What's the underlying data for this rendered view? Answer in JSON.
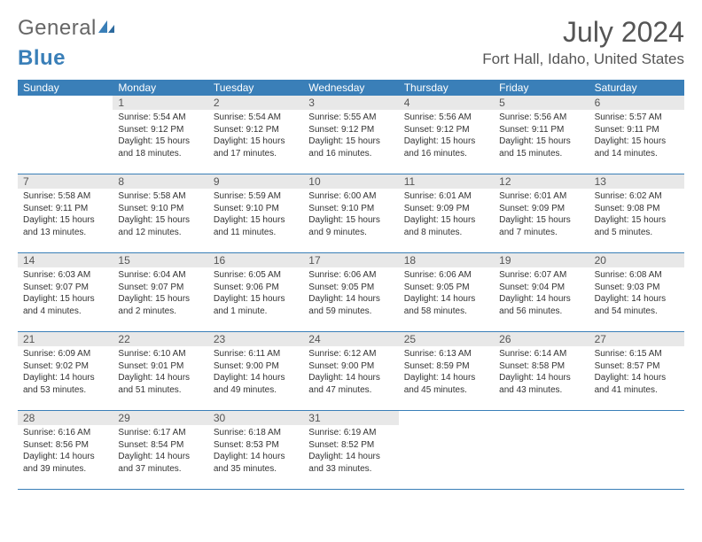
{
  "logo": {
    "general": "General",
    "blue": "Blue"
  },
  "title": "July 2024",
  "location": "Fort Hall, Idaho, United States",
  "colors": {
    "header_bg": "#3a7fb8",
    "daynum_bg": "#e8e8e8",
    "text": "#555555",
    "info_text": "#333333",
    "page_bg": "#ffffff"
  },
  "dayNames": [
    "Sunday",
    "Monday",
    "Tuesday",
    "Wednesday",
    "Thursday",
    "Friday",
    "Saturday"
  ],
  "weeks": [
    [
      {
        "empty": true
      },
      {
        "n": "1",
        "sunrise": "5:54 AM",
        "sunset": "9:12 PM",
        "daylight": "15 hours and 18 minutes."
      },
      {
        "n": "2",
        "sunrise": "5:54 AM",
        "sunset": "9:12 PM",
        "daylight": "15 hours and 17 minutes."
      },
      {
        "n": "3",
        "sunrise": "5:55 AM",
        "sunset": "9:12 PM",
        "daylight": "15 hours and 16 minutes."
      },
      {
        "n": "4",
        "sunrise": "5:56 AM",
        "sunset": "9:12 PM",
        "daylight": "15 hours and 16 minutes."
      },
      {
        "n": "5",
        "sunrise": "5:56 AM",
        "sunset": "9:11 PM",
        "daylight": "15 hours and 15 minutes."
      },
      {
        "n": "6",
        "sunrise": "5:57 AM",
        "sunset": "9:11 PM",
        "daylight": "15 hours and 14 minutes."
      }
    ],
    [
      {
        "n": "7",
        "sunrise": "5:58 AM",
        "sunset": "9:11 PM",
        "daylight": "15 hours and 13 minutes."
      },
      {
        "n": "8",
        "sunrise": "5:58 AM",
        "sunset": "9:10 PM",
        "daylight": "15 hours and 12 minutes."
      },
      {
        "n": "9",
        "sunrise": "5:59 AM",
        "sunset": "9:10 PM",
        "daylight": "15 hours and 11 minutes."
      },
      {
        "n": "10",
        "sunrise": "6:00 AM",
        "sunset": "9:10 PM",
        "daylight": "15 hours and 9 minutes."
      },
      {
        "n": "11",
        "sunrise": "6:01 AM",
        "sunset": "9:09 PM",
        "daylight": "15 hours and 8 minutes."
      },
      {
        "n": "12",
        "sunrise": "6:01 AM",
        "sunset": "9:09 PM",
        "daylight": "15 hours and 7 minutes."
      },
      {
        "n": "13",
        "sunrise": "6:02 AM",
        "sunset": "9:08 PM",
        "daylight": "15 hours and 5 minutes."
      }
    ],
    [
      {
        "n": "14",
        "sunrise": "6:03 AM",
        "sunset": "9:07 PM",
        "daylight": "15 hours and 4 minutes."
      },
      {
        "n": "15",
        "sunrise": "6:04 AM",
        "sunset": "9:07 PM",
        "daylight": "15 hours and 2 minutes."
      },
      {
        "n": "16",
        "sunrise": "6:05 AM",
        "sunset": "9:06 PM",
        "daylight": "15 hours and 1 minute."
      },
      {
        "n": "17",
        "sunrise": "6:06 AM",
        "sunset": "9:05 PM",
        "daylight": "14 hours and 59 minutes."
      },
      {
        "n": "18",
        "sunrise": "6:06 AM",
        "sunset": "9:05 PM",
        "daylight": "14 hours and 58 minutes."
      },
      {
        "n": "19",
        "sunrise": "6:07 AM",
        "sunset": "9:04 PM",
        "daylight": "14 hours and 56 minutes."
      },
      {
        "n": "20",
        "sunrise": "6:08 AM",
        "sunset": "9:03 PM",
        "daylight": "14 hours and 54 minutes."
      }
    ],
    [
      {
        "n": "21",
        "sunrise": "6:09 AM",
        "sunset": "9:02 PM",
        "daylight": "14 hours and 53 minutes."
      },
      {
        "n": "22",
        "sunrise": "6:10 AM",
        "sunset": "9:01 PM",
        "daylight": "14 hours and 51 minutes."
      },
      {
        "n": "23",
        "sunrise": "6:11 AM",
        "sunset": "9:00 PM",
        "daylight": "14 hours and 49 minutes."
      },
      {
        "n": "24",
        "sunrise": "6:12 AM",
        "sunset": "9:00 PM",
        "daylight": "14 hours and 47 minutes."
      },
      {
        "n": "25",
        "sunrise": "6:13 AM",
        "sunset": "8:59 PM",
        "daylight": "14 hours and 45 minutes."
      },
      {
        "n": "26",
        "sunrise": "6:14 AM",
        "sunset": "8:58 PM",
        "daylight": "14 hours and 43 minutes."
      },
      {
        "n": "27",
        "sunrise": "6:15 AM",
        "sunset": "8:57 PM",
        "daylight": "14 hours and 41 minutes."
      }
    ],
    [
      {
        "n": "28",
        "sunrise": "6:16 AM",
        "sunset": "8:56 PM",
        "daylight": "14 hours and 39 minutes."
      },
      {
        "n": "29",
        "sunrise": "6:17 AM",
        "sunset": "8:54 PM",
        "daylight": "14 hours and 37 minutes."
      },
      {
        "n": "30",
        "sunrise": "6:18 AM",
        "sunset": "8:53 PM",
        "daylight": "14 hours and 35 minutes."
      },
      {
        "n": "31",
        "sunrise": "6:19 AM",
        "sunset": "8:52 PM",
        "daylight": "14 hours and 33 minutes."
      },
      {
        "empty": true
      },
      {
        "empty": true
      },
      {
        "empty": true
      }
    ]
  ],
  "labels": {
    "sunrise": "Sunrise:",
    "sunset": "Sunset:",
    "daylight": "Daylight:"
  }
}
